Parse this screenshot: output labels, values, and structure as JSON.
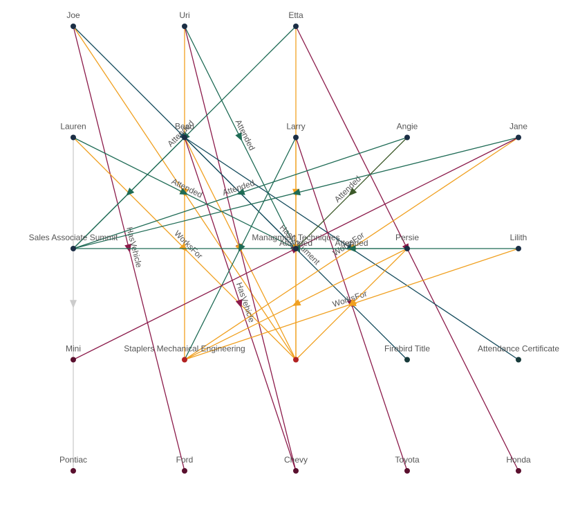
{
  "nodes": [
    {
      "label": "Joe"
    },
    {
      "label": "Uri"
    },
    {
      "label": "Etta"
    },
    {
      "label": "Lauren"
    },
    {
      "label": "Beau"
    },
    {
      "label": "Larry"
    },
    {
      "label": "Angie"
    },
    {
      "label": "Jane"
    },
    {
      "label": "Sales Associate Summit"
    },
    {
      "label": "Managment Techniques"
    },
    {
      "label": "Persie"
    },
    {
      "label": "Lilith"
    },
    {
      "label": "Mini"
    },
    {
      "label": "Staplers Mechanical Engineering"
    },
    {
      "label": null
    },
    {
      "label": "Firebird Title"
    },
    {
      "label": "Attendance Certificate"
    },
    {
      "label": "Pontiac"
    },
    {
      "label": "Ford"
    },
    {
      "label": "Chevy"
    },
    {
      "label": "Toyota"
    },
    {
      "label": "Honda"
    }
  ],
  "edge_labels": [
    "Attended",
    "Attended",
    "Attended",
    "HasDocument",
    "Attended",
    "Attended",
    "HasVehicle",
    "WorksFor",
    "Attended",
    "Attended",
    "HasVehicle",
    "WorksFor",
    "WorksFor"
  ]
}
